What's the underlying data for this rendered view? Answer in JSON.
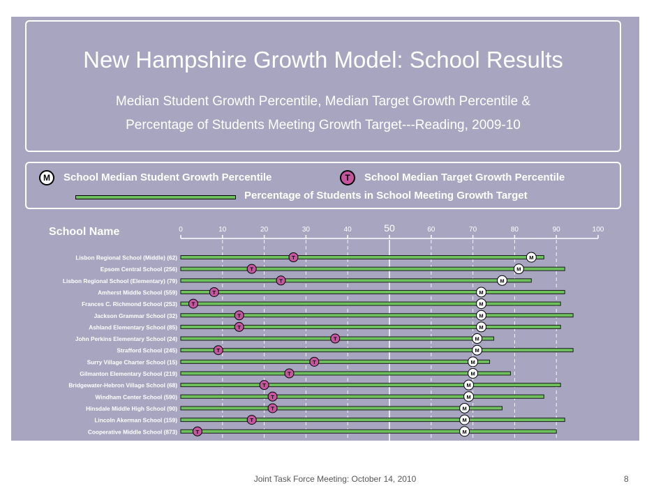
{
  "slide": {
    "title": "New Hampshire Growth Model: School Results",
    "subtitle_line1": "Median Student Growth Percentile, Median Target Growth Percentile &",
    "subtitle_line2": "Percentage of Students Meeting Growth Target---Reading, 2009-10",
    "footer": "Joint Task Force Meeting: October 14, 2010",
    "page_number": "8"
  },
  "legend": {
    "m_marker": "M",
    "m_label": "School Median Student Growth Percentile",
    "t_marker": "T",
    "t_label": "School Median Target Growth Percentile",
    "line_label": "Percentage of Students in School Meeting Growth Target"
  },
  "column_header": "School Name",
  "colors": {
    "panel": "#a7a5c0",
    "bar": "#6ec05e",
    "target_marker": "#c4559e",
    "median_marker": "#ffffff"
  },
  "chart_data": {
    "type": "dot-bar",
    "xlim": [
      0,
      100
    ],
    "x_ticks": [
      "0",
      "10",
      "20",
      "30",
      "40",
      "50",
      "60",
      "70",
      "80",
      "90",
      "100"
    ],
    "reference_line": 50,
    "schools": [
      {
        "name": "Lisbon Regional School (Middle) (62)",
        "median_sgp": 84,
        "target_sgp": 27,
        "pct_meeting": 87
      },
      {
        "name": "Epsom Central School (256)",
        "median_sgp": 81,
        "target_sgp": 17,
        "pct_meeting": 92
      },
      {
        "name": "Lisbon Regional School (Elementary) (79)",
        "median_sgp": 77,
        "target_sgp": 24,
        "pct_meeting": 84
      },
      {
        "name": "Amherst Middle School (559)",
        "median_sgp": 72,
        "target_sgp": 8,
        "pct_meeting": 92
      },
      {
        "name": "Frances C. Richmond School (253)",
        "median_sgp": 72,
        "target_sgp": 3,
        "pct_meeting": 91
      },
      {
        "name": "Jackson Grammar School (32)",
        "median_sgp": 72,
        "target_sgp": 14,
        "pct_meeting": 94
      },
      {
        "name": "Ashland Elementary School (85)",
        "median_sgp": 72,
        "target_sgp": 14,
        "pct_meeting": 91
      },
      {
        "name": "John Perkins Elementary School (24)",
        "median_sgp": 71,
        "target_sgp": 37,
        "pct_meeting": 75
      },
      {
        "name": "Strafford School (245)",
        "median_sgp": 71,
        "target_sgp": 9,
        "pct_meeting": 94
      },
      {
        "name": "Surry Village Charter School (15)",
        "median_sgp": 70,
        "target_sgp": 32,
        "pct_meeting": 74
      },
      {
        "name": "Gilmanton Elementary School (219)",
        "median_sgp": 70,
        "target_sgp": 26,
        "pct_meeting": 79
      },
      {
        "name": "Bridgewater-Hebron Village School (68)",
        "median_sgp": 69,
        "target_sgp": 20,
        "pct_meeting": 91
      },
      {
        "name": "Windham Center School (590)",
        "median_sgp": 69,
        "target_sgp": 22,
        "pct_meeting": 87
      },
      {
        "name": "Hinsdale Middle High School (90)",
        "median_sgp": 68,
        "target_sgp": 22,
        "pct_meeting": 77
      },
      {
        "name": "Lincoln Akerman School (159)",
        "median_sgp": 68,
        "target_sgp": 17,
        "pct_meeting": 92
      },
      {
        "name": "Cooperative Middle School (873)",
        "median_sgp": 68,
        "target_sgp": 4,
        "pct_meeting": 90
      }
    ]
  }
}
